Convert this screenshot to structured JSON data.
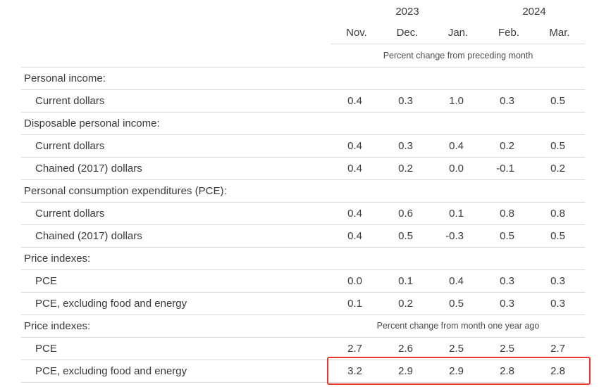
{
  "annotation": {
    "purpose": "highlight-box",
    "color": "#e8352e"
  },
  "chart_data": {
    "type": "table",
    "year_groups": [
      {
        "label": "2023",
        "months": [
          "Nov.",
          "Dec."
        ]
      },
      {
        "label": "2024",
        "months": [
          "Jan.",
          "Feb.",
          "Mar."
        ]
      }
    ],
    "month_headers": [
      "Nov.",
      "Dec.",
      "Jan.",
      "Feb.",
      "Mar."
    ],
    "units_note": "Percent change from preceding month",
    "rows": [
      {
        "label": "Personal income:",
        "section": true
      },
      {
        "label": "Current dollars",
        "values": [
          0.4,
          0.3,
          1.0,
          0.3,
          0.5
        ]
      },
      {
        "label": "Disposable personal income:",
        "section": true
      },
      {
        "label": "Current dollars",
        "values": [
          0.4,
          0.3,
          0.4,
          0.2,
          0.5
        ]
      },
      {
        "label": "Chained (2017) dollars",
        "values": [
          0.4,
          0.2,
          0.0,
          -0.1,
          0.2
        ]
      },
      {
        "label": "Personal consumption expenditures (PCE):",
        "section": true
      },
      {
        "label": "Current dollars",
        "values": [
          0.4,
          0.6,
          0.1,
          0.8,
          0.8
        ]
      },
      {
        "label": "Chained (2017) dollars",
        "values": [
          0.4,
          0.5,
          -0.3,
          0.5,
          0.5
        ]
      },
      {
        "label": "Price indexes:",
        "section": true
      },
      {
        "label": "PCE",
        "values": [
          0.0,
          0.1,
          0.4,
          0.3,
          0.3
        ]
      },
      {
        "label": "PCE, excluding food and energy",
        "values": [
          0.1,
          0.2,
          0.5,
          0.3,
          0.3
        ]
      },
      {
        "label": "Price indexes:",
        "section": true,
        "note": "Percent change from month one year ago"
      },
      {
        "label": "PCE",
        "values": [
          2.7,
          2.6,
          2.5,
          2.5,
          2.7
        ]
      },
      {
        "label": "PCE, excluding food and energy",
        "values": [
          3.2,
          2.9,
          2.9,
          2.8,
          2.8
        ],
        "highlighted": true
      }
    ]
  }
}
